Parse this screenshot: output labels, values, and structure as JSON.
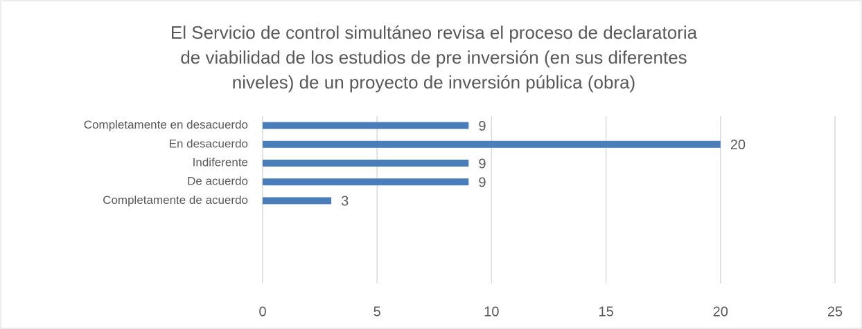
{
  "chart_data": {
    "type": "bar",
    "orientation": "horizontal",
    "title": [
      "El Servicio de control simultáneo revisa el proceso de declaratoria",
      "de viabilidad de los estudios de pre inversión (en sus diferentes",
      "niveles) de un proyecto de inversión pública (obra)"
    ],
    "categories": [
      "Completamente en desacuerdo",
      "En desacuerdo",
      "Indiferente",
      "De acuerdo",
      "Completamente de acuerdo"
    ],
    "values": [
      9,
      20,
      9,
      9,
      3
    ],
    "color": "#4a7ebb",
    "xlim": [
      0,
      25
    ],
    "xticks": [
      0,
      5,
      10,
      15,
      20,
      25
    ],
    "grid": true
  }
}
